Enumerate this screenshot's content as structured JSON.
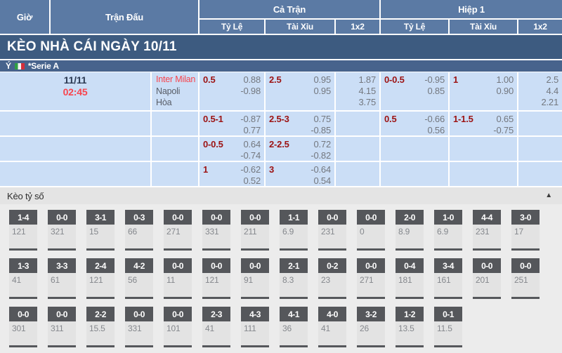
{
  "colors": {
    "headerBlue": "#5b7aa4",
    "darkBar": "#3d5b80",
    "leagueBar": "#47638c",
    "rowBlue": "#cbdef6",
    "redLabel": "#9c1212",
    "valGray": "#73777e",
    "timeRed": "#f8444d",
    "dateNavy": "#2c3a52",
    "teamGray": "#575c66",
    "sectionBg": "#ececec",
    "barBg": "#e4e4e4",
    "boxHead": "#55575b",
    "boxBody": "#e3e3e3",
    "boxVal": "#85888d"
  },
  "icons": {
    "collapse": "triangle-up-icon",
    "league_flag": "italy-flag-icon"
  },
  "table": {
    "headers": {
      "time": "Giờ",
      "match": "Trận Đấu",
      "full_match": "Cả Trận",
      "first_half": "Hiệp 1",
      "handicap": "Tỷ Lệ",
      "over_under": "Tài Xỉu",
      "one_x_two": "1x2"
    },
    "section_title": "KÈO NHÀ CÁI NGÀY 10/11",
    "league": {
      "country": "Ý",
      "name": "*Serie A"
    },
    "match": {
      "date": "11/11",
      "time": "02:45",
      "teams": [
        "Inter Milan",
        "Napoli",
        "Hòa"
      ],
      "odds_rows": [
        {
          "ft_hdp": {
            "label": "0.5",
            "vals": [
              "0.88",
              "-0.98"
            ]
          },
          "ft_ou": {
            "label": "2.5",
            "vals": [
              "0.95",
              "0.95"
            ]
          },
          "ft_1x2": [
            "1.87",
            "4.15",
            "3.75"
          ],
          "h1_hdp": {
            "label": "0-0.5",
            "vals": [
              "-0.95",
              "0.85"
            ]
          },
          "h1_ou": {
            "label": "1",
            "vals": [
              "1.00",
              "0.90"
            ]
          },
          "h1_1x2": [
            "2.5",
            "4.4",
            "2.21"
          ]
        },
        {
          "ft_hdp": {
            "label": "0.5-1",
            "vals": [
              "-0.87",
              "0.77"
            ]
          },
          "ft_ou": {
            "label": "2.5-3",
            "vals": [
              "0.75",
              "-0.85"
            ]
          },
          "ft_1x2": [],
          "h1_hdp": {
            "label": "0.5",
            "vals": [
              "-0.66",
              "0.56"
            ]
          },
          "h1_ou": {
            "label": "1-1.5",
            "vals": [
              "0.65",
              "-0.75"
            ]
          },
          "h1_1x2": []
        },
        {
          "ft_hdp": {
            "label": "0-0.5",
            "vals": [
              "0.64",
              "-0.74"
            ]
          },
          "ft_ou": {
            "label": "2-2.5",
            "vals": [
              "0.72",
              "-0.82"
            ]
          },
          "ft_1x2": [],
          "h1_hdp": null,
          "h1_ou": null,
          "h1_1x2": []
        },
        {
          "ft_hdp": {
            "label": "1",
            "vals": [
              "-0.62",
              "0.52"
            ]
          },
          "ft_ou": {
            "label": "3",
            "vals": [
              "-0.64",
              "0.54"
            ]
          },
          "ft_1x2": [],
          "h1_hdp": null,
          "h1_ou": null,
          "h1_1x2": []
        }
      ]
    }
  },
  "score_section": {
    "title": "Kèo tỷ số",
    "collapse_glyph": "▲",
    "rows": [
      [
        {
          "score": "1-4",
          "odds": "121"
        },
        {
          "score": "0-0",
          "odds": "321"
        },
        {
          "score": "3-1",
          "odds": "15"
        },
        {
          "score": "0-3",
          "odds": "66"
        },
        {
          "score": "0-0",
          "odds": "271"
        },
        {
          "score": "0-0",
          "odds": "331"
        },
        {
          "score": "0-0",
          "odds": "211"
        },
        {
          "score": "1-1",
          "odds": "6.9"
        },
        {
          "score": "0-0",
          "odds": "231"
        },
        {
          "score": "0-0",
          "odds": "0"
        },
        {
          "score": "2-0",
          "odds": "8.9"
        },
        {
          "score": "1-0",
          "odds": "6.9"
        },
        {
          "score": "4-4",
          "odds": "231"
        },
        {
          "score": "3-0",
          "odds": "17"
        }
      ],
      [
        {
          "score": "1-3",
          "odds": "41"
        },
        {
          "score": "3-3",
          "odds": "61"
        },
        {
          "score": "2-4",
          "odds": "121"
        },
        {
          "score": "4-2",
          "odds": "56"
        },
        {
          "score": "0-0",
          "odds": "11"
        },
        {
          "score": "0-0",
          "odds": "121"
        },
        {
          "score": "0-0",
          "odds": "91"
        },
        {
          "score": "2-1",
          "odds": "8.3"
        },
        {
          "score": "0-2",
          "odds": "23"
        },
        {
          "score": "0-0",
          "odds": "271"
        },
        {
          "score": "0-4",
          "odds": "181"
        },
        {
          "score": "3-4",
          "odds": "161"
        },
        {
          "score": "0-0",
          "odds": "201"
        },
        {
          "score": "0-0",
          "odds": "251"
        }
      ],
      [
        {
          "score": "0-0",
          "odds": "301"
        },
        {
          "score": "0-0",
          "odds": "311"
        },
        {
          "score": "2-2",
          "odds": "15.5"
        },
        {
          "score": "0-0",
          "odds": "331"
        },
        {
          "score": "0-0",
          "odds": "101"
        },
        {
          "score": "2-3",
          "odds": "41"
        },
        {
          "score": "4-3",
          "odds": "111"
        },
        {
          "score": "4-1",
          "odds": "36"
        },
        {
          "score": "4-0",
          "odds": "41"
        },
        {
          "score": "3-2",
          "odds": "26"
        },
        {
          "score": "1-2",
          "odds": "13.5"
        },
        {
          "score": "0-1",
          "odds": "11.5"
        }
      ]
    ]
  }
}
